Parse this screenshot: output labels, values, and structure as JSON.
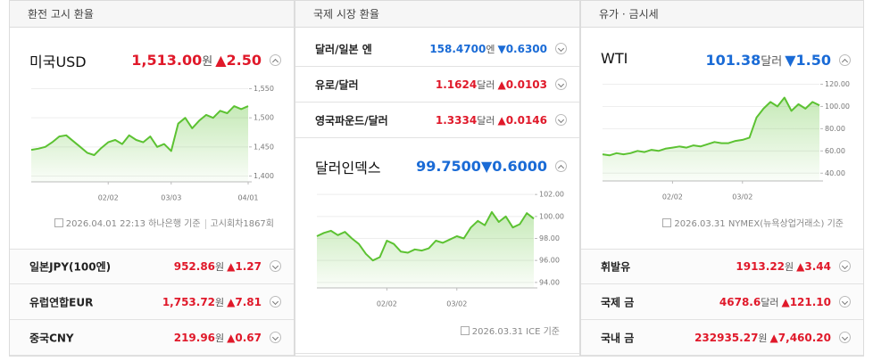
{
  "panels": [
    {
      "title": "환전 고시 환율",
      "main": {
        "name": "미국USD",
        "value": "1,513.00",
        "unit": "원",
        "arrow": "▲",
        "change": "2.50",
        "color": "#e0192a"
      },
      "chart_data": {
        "type": "line",
        "color": "#5cc232",
        "categories": [
          null,
          null,
          null,
          null,
          null,
          null,
          null,
          null,
          null,
          null,
          null,
          "02/02",
          null,
          null,
          null,
          null,
          null,
          null,
          null,
          null,
          "03/03",
          null,
          null,
          null,
          null,
          null,
          null,
          null,
          null,
          null,
          null,
          "04/01"
        ],
        "values": [
          1445,
          1447,
          1450,
          1458,
          1468,
          1470,
          1460,
          1450,
          1440,
          1436,
          1448,
          1458,
          1462,
          1455,
          1470,
          1462,
          1458,
          1468,
          1450,
          1455,
          1443,
          1490,
          1500,
          1482,
          1495,
          1505,
          1500,
          1512,
          1508,
          1520,
          1515,
          1520
        ],
        "ylim": [
          1390,
          1560
        ],
        "yticks": [
          {
            "value": 1400,
            "label": "1,400"
          },
          {
            "value": 1450,
            "label": "1,450"
          },
          {
            "value": 1500,
            "label": "1,500"
          },
          {
            "value": 1550,
            "label": "1,550"
          }
        ]
      },
      "footer": [
        "2026.04.01 22:13 하나은행 기준",
        "고시회차1867회"
      ],
      "rows": [
        {
          "name": "일본JPY(100엔)",
          "value": "952.86",
          "unit": "원",
          "arrow": "▲",
          "change": "1.27",
          "color": "#e0192a"
        },
        {
          "name": "유럽연합EUR",
          "value": "1,753.72",
          "unit": "원",
          "arrow": "▲",
          "change": "7.81",
          "color": "#e0192a"
        },
        {
          "name": "중국CNY",
          "value": "219.96",
          "unit": "원",
          "arrow": "▲",
          "change": "0.67",
          "color": "#e0192a"
        }
      ]
    },
    {
      "title": "국제 시장 환율",
      "main": {
        "name": "달러인덱스",
        "value": "99.7500",
        "arrow": "▼",
        "change": "0.6000",
        "color": "#1a6bd6"
      },
      "chart_data": {
        "type": "line",
        "color": "#5cc232",
        "categories": [
          null,
          null,
          null,
          null,
          null,
          null,
          null,
          null,
          null,
          null,
          "02/02",
          null,
          null,
          null,
          null,
          null,
          null,
          null,
          null,
          null,
          "03/02",
          null,
          null,
          null,
          null,
          null,
          null,
          null,
          null,
          null,
          null,
          null
        ],
        "values": [
          98.2,
          98.5,
          98.7,
          98.3,
          98.6,
          98.0,
          97.5,
          96.6,
          96.0,
          96.3,
          97.8,
          97.5,
          96.8,
          96.7,
          97.0,
          96.9,
          97.1,
          97.8,
          97.6,
          97.9,
          98.2,
          98.0,
          99.0,
          99.6,
          99.2,
          100.4,
          99.5,
          100.0,
          99.0,
          99.3,
          100.3,
          99.8
        ],
        "ylim": [
          93.5,
          102.5
        ],
        "yticks": [
          {
            "value": 94,
            "label": "94.00"
          },
          {
            "value": 96,
            "label": "96.00"
          },
          {
            "value": 98,
            "label": "98.00"
          },
          {
            "value": 100,
            "label": "100.00"
          },
          {
            "value": 102,
            "label": "102.00"
          }
        ]
      },
      "footer": [
        "2026.03.31 ICE 기준"
      ],
      "rows": [
        {
          "name": "달러/일본 엔",
          "value": "158.4700",
          "unit": "엔",
          "arrow": "▼",
          "change": "0.6300",
          "color": "#1a6bd6"
        },
        {
          "name": "유로/달러",
          "value": "1.1624",
          "unit": "달러",
          "arrow": "▲",
          "change": "0.0103",
          "color": "#e0192a"
        },
        {
          "name": "영국파운드/달러",
          "value": "1.3334",
          "unit": "달러",
          "arrow": "▲",
          "change": "0.0146",
          "color": "#e0192a"
        }
      ]
    },
    {
      "title": "유가 · 금시세",
      "main": {
        "name": "WTI",
        "value": "101.38",
        "unit": "달러",
        "arrow": "▼",
        "change": "1.50",
        "color": "#1a6bd6"
      },
      "chart_data": {
        "type": "line",
        "color": "#5cc232",
        "categories": [
          null,
          null,
          null,
          null,
          null,
          null,
          null,
          null,
          null,
          null,
          "02/02",
          null,
          null,
          null,
          null,
          null,
          null,
          null,
          null,
          null,
          "03/02",
          null,
          null,
          null,
          null,
          null,
          null,
          null,
          null,
          null,
          null,
          null
        ],
        "values": [
          57,
          56,
          58,
          57,
          58,
          60,
          59,
          61,
          60,
          62,
          63,
          64,
          63,
          65,
          64,
          66,
          68,
          67,
          67,
          69,
          70,
          72,
          90,
          98,
          104,
          100,
          108,
          96,
          102,
          98,
          104,
          101
        ],
        "ylim": [
          33,
          122
        ],
        "yticks": [
          {
            "value": 40,
            "label": "40.00"
          },
          {
            "value": 60,
            "label": "60.00"
          },
          {
            "value": 80,
            "label": "80.00"
          },
          {
            "value": 100,
            "label": "100.00"
          },
          {
            "value": 120,
            "label": "120.00"
          }
        ]
      },
      "footer": [
        "2026.03.31 NYMEX(뉴욕상업거래소) 기준"
      ],
      "rows": [
        {
          "name": "휘발유",
          "value": "1913.22",
          "unit": "원",
          "arrow": "▲",
          "change": "3.44",
          "color": "#e0192a"
        },
        {
          "name": "국제 금",
          "value": "4678.6",
          "unit": "달러",
          "arrow": "▲",
          "change": "121.10",
          "color": "#e0192a"
        },
        {
          "name": "국내 금",
          "value": "232935.27",
          "unit": "원",
          "arrow": "▲",
          "change": "7,460.20",
          "color": "#e0192a"
        }
      ]
    }
  ]
}
